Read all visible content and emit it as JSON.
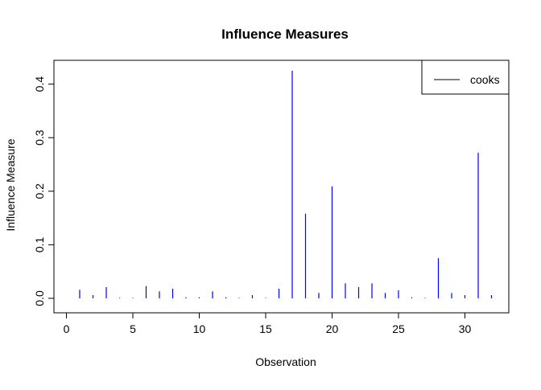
{
  "chart_data": {
    "type": "bar",
    "title": "Influence Measures",
    "xlabel": "Observation",
    "ylabel": "Influence Measure",
    "xlim": [
      0,
      32
    ],
    "ylim": [
      0,
      0.425
    ],
    "x_ticks": [
      0,
      5,
      10,
      15,
      20,
      25,
      30
    ],
    "y_ticks": [
      0.0,
      0.1,
      0.2,
      0.3,
      0.4
    ],
    "x_tick_labels": [
      "0",
      "5",
      "10",
      "15",
      "20",
      "25",
      "30"
    ],
    "y_tick_labels": [
      "0.0",
      "0.1",
      "0.2",
      "0.3",
      "0.4"
    ],
    "legend": {
      "position": "top-right",
      "label": "cooks"
    },
    "grid": false,
    "series": [
      {
        "name": "cooks",
        "color": "#0000ff",
        "x": [
          1,
          2,
          3,
          4,
          5,
          6,
          7,
          8,
          9,
          10,
          11,
          12,
          13,
          14,
          15,
          16,
          17,
          18,
          19,
          20,
          21,
          22,
          23,
          24,
          25,
          26,
          27,
          28,
          29,
          30,
          31,
          32
        ],
        "values": [
          0.016,
          0.006,
          0.021,
          0.001,
          0.001,
          0.023,
          0.013,
          0.018,
          0.002,
          0.002,
          0.013,
          0.002,
          0.001,
          0.006,
          0.001,
          0.018,
          0.425,
          0.158,
          0.01,
          0.209,
          0.028,
          0.021,
          0.028,
          0.01,
          0.015,
          0.002,
          0.001,
          0.075,
          0.01,
          0.006,
          0.272,
          0.006
        ]
      }
    ]
  }
}
